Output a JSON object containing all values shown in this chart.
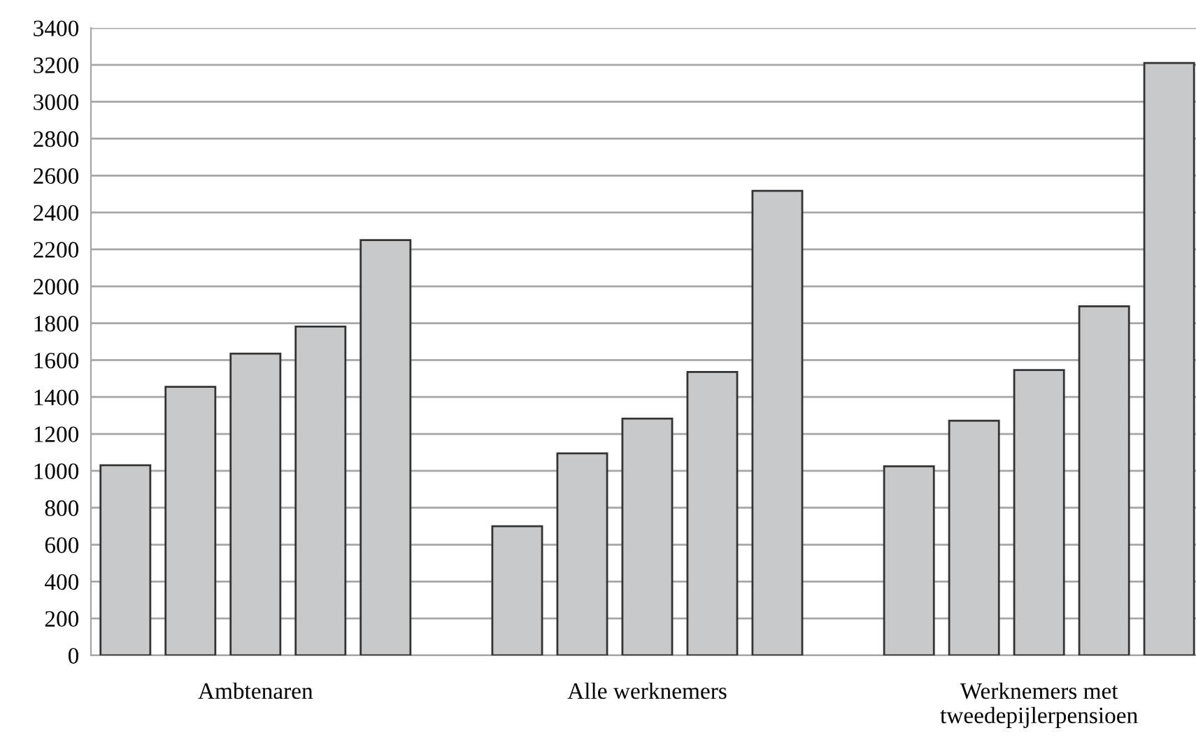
{
  "chart_data": {
    "type": "bar",
    "categories": [
      "Ambtenaren",
      "Alle werknemers",
      "Werknemers met\ntweedepijlerpensioen"
    ],
    "series": [
      {
        "color": "#c8c9cb",
        "values": [
          1030,
          700,
          1025
        ]
      },
      {
        "color": "#c8c9cb",
        "values": [
          1455,
          1095,
          1272
        ]
      },
      {
        "color": "#c8c9cb",
        "values": [
          1635,
          1283,
          1546
        ]
      },
      {
        "color": "#c8c9cb",
        "values": [
          1782,
          1536,
          1892
        ]
      },
      {
        "color": "#c8c9cb",
        "values": [
          2250,
          2517,
          3210
        ]
      }
    ],
    "ylim": [
      0,
      3400
    ],
    "yticks": [
      0,
      200,
      400,
      600,
      800,
      1000,
      1200,
      1400,
      1600,
      1800,
      2000,
      2200,
      2400,
      2600,
      2800,
      3000,
      3200,
      3400
    ],
    "grid": "y"
  }
}
